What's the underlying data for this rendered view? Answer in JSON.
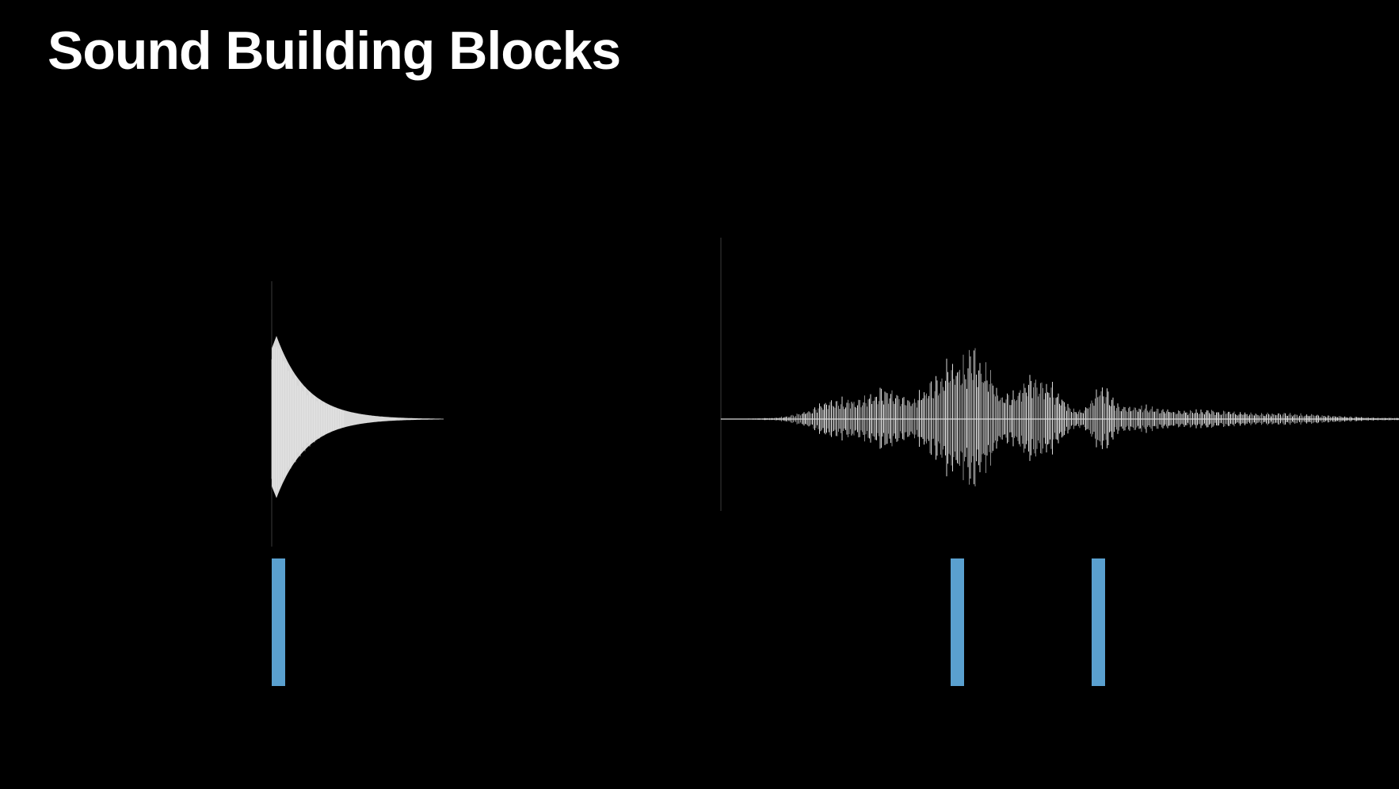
{
  "slide": {
    "title": "Sound Building Blocks"
  },
  "colors": {
    "background": "#000000",
    "title": "#ffffff",
    "waveform": "#d8d8d8",
    "waveform_dim": "#8a8a8a",
    "marker": "#5aa0cf",
    "axis": "#3a3a3a"
  },
  "waveforms": [
    {
      "name": "transient-decay",
      "shape": "sharp attack, exponential decay"
    },
    {
      "name": "continuous-sound",
      "shape": "gradual swell with multiple peaks, long tail"
    }
  ],
  "markers": [
    {
      "name": "event-marker-1",
      "waveform": "transient-decay"
    },
    {
      "name": "event-marker-2",
      "waveform": "continuous-sound"
    },
    {
      "name": "event-marker-3",
      "waveform": "continuous-sound"
    }
  ]
}
